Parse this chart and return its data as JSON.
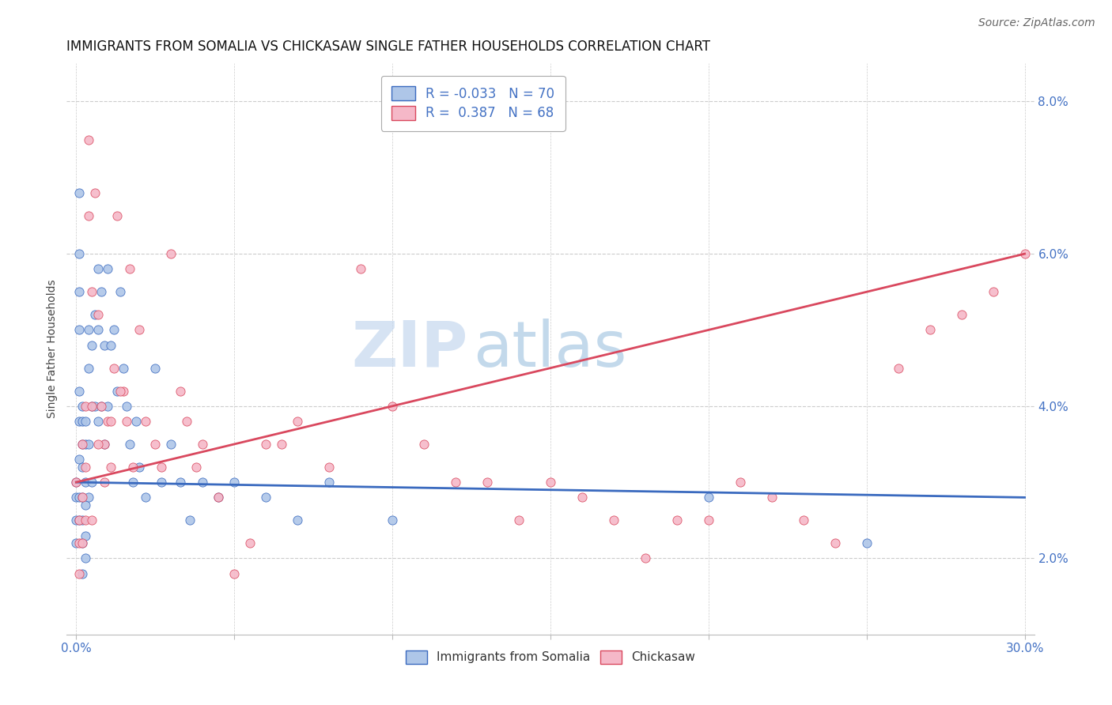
{
  "title": "IMMIGRANTS FROM SOMALIA VS CHICKASAW SINGLE FATHER HOUSEHOLDS CORRELATION CHART",
  "source": "Source: ZipAtlas.com",
  "ylabel": "Single Father Households",
  "xlim": [
    0.0,
    0.3
  ],
  "ylim": [
    0.01,
    0.085
  ],
  "xticks": [
    0.0,
    0.05,
    0.1,
    0.15,
    0.2,
    0.25,
    0.3
  ],
  "yticks": [
    0.02,
    0.04,
    0.06,
    0.08
  ],
  "yticklabels": [
    "2.0%",
    "4.0%",
    "6.0%",
    "8.0%"
  ],
  "series1_color": "#aec6e8",
  "series2_color": "#f5b8c8",
  "line1_color": "#3a6abf",
  "line2_color": "#d9485e",
  "R1": -0.033,
  "N1": 70,
  "R2": 0.387,
  "N2": 68,
  "watermark_zip": "ZIP",
  "watermark_atlas": "atlas",
  "title_fontsize": 12,
  "source_fontsize": 10,
  "legend_fontsize": 12,
  "series1_x": [
    0.0,
    0.0,
    0.0,
    0.0,
    0.001,
    0.001,
    0.001,
    0.001,
    0.001,
    0.001,
    0.001,
    0.001,
    0.001,
    0.002,
    0.002,
    0.002,
    0.002,
    0.002,
    0.002,
    0.002,
    0.002,
    0.003,
    0.003,
    0.003,
    0.003,
    0.003,
    0.003,
    0.004,
    0.004,
    0.004,
    0.004,
    0.005,
    0.005,
    0.005,
    0.006,
    0.006,
    0.007,
    0.007,
    0.007,
    0.008,
    0.008,
    0.009,
    0.009,
    0.01,
    0.01,
    0.011,
    0.012,
    0.013,
    0.014,
    0.015,
    0.016,
    0.017,
    0.018,
    0.019,
    0.02,
    0.022,
    0.025,
    0.027,
    0.03,
    0.033,
    0.036,
    0.04,
    0.045,
    0.05,
    0.06,
    0.07,
    0.08,
    0.1,
    0.2,
    0.25
  ],
  "series1_y": [
    0.03,
    0.028,
    0.025,
    0.022,
    0.068,
    0.06,
    0.055,
    0.05,
    0.042,
    0.038,
    0.033,
    0.028,
    0.025,
    0.04,
    0.038,
    0.035,
    0.032,
    0.028,
    0.025,
    0.022,
    0.018,
    0.038,
    0.035,
    0.03,
    0.027,
    0.023,
    0.02,
    0.05,
    0.045,
    0.035,
    0.028,
    0.048,
    0.04,
    0.03,
    0.052,
    0.04,
    0.058,
    0.05,
    0.038,
    0.055,
    0.04,
    0.048,
    0.035,
    0.058,
    0.04,
    0.048,
    0.05,
    0.042,
    0.055,
    0.045,
    0.04,
    0.035,
    0.03,
    0.038,
    0.032,
    0.028,
    0.045,
    0.03,
    0.035,
    0.03,
    0.025,
    0.03,
    0.028,
    0.03,
    0.028,
    0.025,
    0.03,
    0.025,
    0.028,
    0.022
  ],
  "series2_x": [
    0.0,
    0.001,
    0.001,
    0.001,
    0.002,
    0.002,
    0.002,
    0.003,
    0.003,
    0.003,
    0.004,
    0.004,
    0.005,
    0.005,
    0.006,
    0.007,
    0.008,
    0.009,
    0.01,
    0.011,
    0.012,
    0.013,
    0.015,
    0.016,
    0.017,
    0.018,
    0.02,
    0.022,
    0.025,
    0.027,
    0.03,
    0.033,
    0.035,
    0.038,
    0.04,
    0.045,
    0.05,
    0.055,
    0.06,
    0.065,
    0.07,
    0.08,
    0.09,
    0.1,
    0.11,
    0.12,
    0.13,
    0.14,
    0.15,
    0.16,
    0.17,
    0.18,
    0.19,
    0.2,
    0.21,
    0.22,
    0.23,
    0.24,
    0.26,
    0.27,
    0.28,
    0.29,
    0.3,
    0.005,
    0.007,
    0.009,
    0.011,
    0.014
  ],
  "series2_y": [
    0.03,
    0.025,
    0.022,
    0.018,
    0.035,
    0.028,
    0.022,
    0.04,
    0.032,
    0.025,
    0.065,
    0.075,
    0.055,
    0.04,
    0.068,
    0.052,
    0.04,
    0.035,
    0.038,
    0.032,
    0.045,
    0.065,
    0.042,
    0.038,
    0.058,
    0.032,
    0.05,
    0.038,
    0.035,
    0.032,
    0.06,
    0.042,
    0.038,
    0.032,
    0.035,
    0.028,
    0.018,
    0.022,
    0.035,
    0.035,
    0.038,
    0.032,
    0.058,
    0.04,
    0.035,
    0.03,
    0.03,
    0.025,
    0.03,
    0.028,
    0.025,
    0.02,
    0.025,
    0.025,
    0.03,
    0.028,
    0.025,
    0.022,
    0.045,
    0.05,
    0.052,
    0.055,
    0.06,
    0.025,
    0.035,
    0.03,
    0.038,
    0.042
  ]
}
